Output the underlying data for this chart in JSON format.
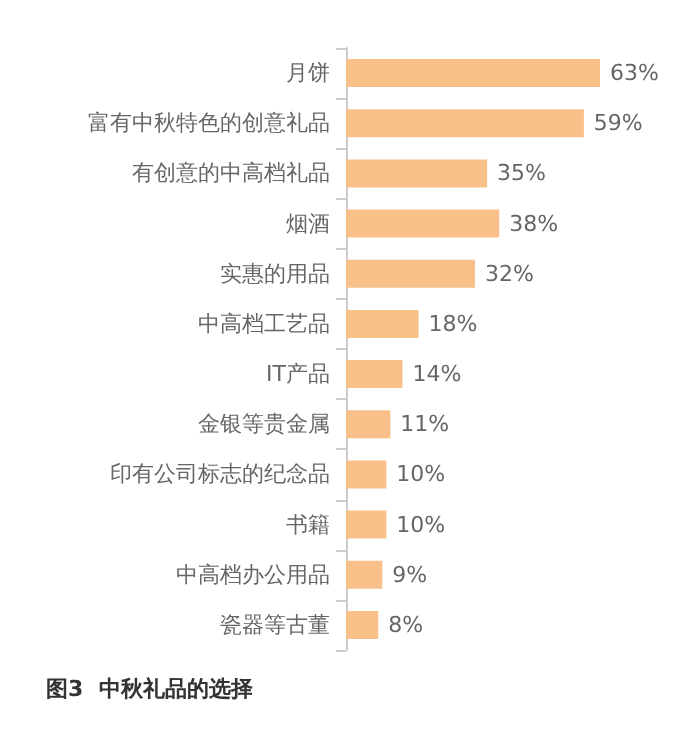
{
  "chart_data": {
    "type": "bar",
    "orientation": "horizontal",
    "title": "图3  中秋礼品的选择",
    "categories": [
      "月饼",
      "富有中秋特色的创意礼品",
      "有创意的中高档礼品",
      "烟酒",
      "实惠的用品",
      "中高档工艺品",
      "IT产品",
      "金银等贵金属",
      "印有公司标志的纪念品",
      "书籍",
      "中高档办公用品",
      "瓷器等古董"
    ],
    "values": [
      63,
      59,
      35,
      38,
      32,
      18,
      14,
      11,
      10,
      10,
      9,
      8
    ],
    "value_labels": [
      "63%",
      "59%",
      "35%",
      "38%",
      "32%",
      "18%",
      "14%",
      "11%",
      "10%",
      "10%",
      "9%",
      "8%"
    ],
    "color": "#f9c08a"
  }
}
